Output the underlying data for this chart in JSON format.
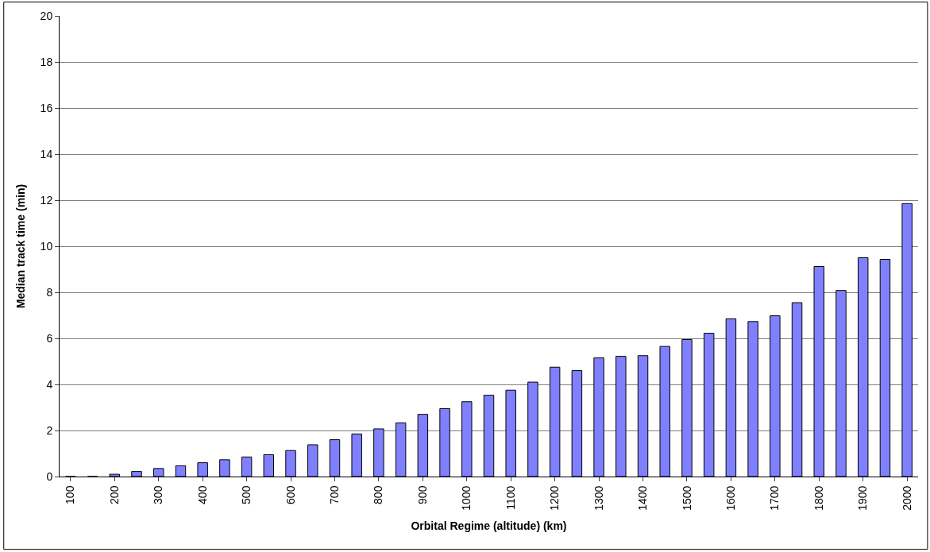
{
  "chart_data": {
    "type": "bar",
    "xlabel": "Orbital Regime (altitude) (km)",
    "ylabel": "Median track time (min)",
    "categories": [
      "100",
      null,
      "200",
      null,
      "300",
      null,
      "400",
      null,
      "500",
      null,
      "600",
      null,
      "700",
      null,
      "800",
      null,
      "900",
      null,
      "1000",
      null,
      "1100",
      null,
      "1200",
      null,
      "1300",
      null,
      "1400",
      null,
      "1500",
      null,
      "1600",
      null,
      "1700",
      null,
      "1800",
      null,
      "1900",
      null,
      "2000"
    ],
    "values": [
      0,
      0,
      0.1,
      0.22,
      0.35,
      0.47,
      0.6,
      0.73,
      0.85,
      0.95,
      1.13,
      1.38,
      1.6,
      1.85,
      2.07,
      2.33,
      2.7,
      2.95,
      3.25,
      3.53,
      3.75,
      4.1,
      4.75,
      4.6,
      5.15,
      5.22,
      5.25,
      5.65,
      5.95,
      6.22,
      6.85,
      6.73,
      6.98,
      7.55,
      9.12,
      8.08,
      9.5,
      9.43,
      11.85
    ],
    "color": "#8080ff",
    "ylim": [
      0,
      20
    ],
    "yticks": [
      0,
      2,
      4,
      6,
      8,
      10,
      12,
      14,
      16,
      18,
      20
    ],
    "grid": "y"
  }
}
